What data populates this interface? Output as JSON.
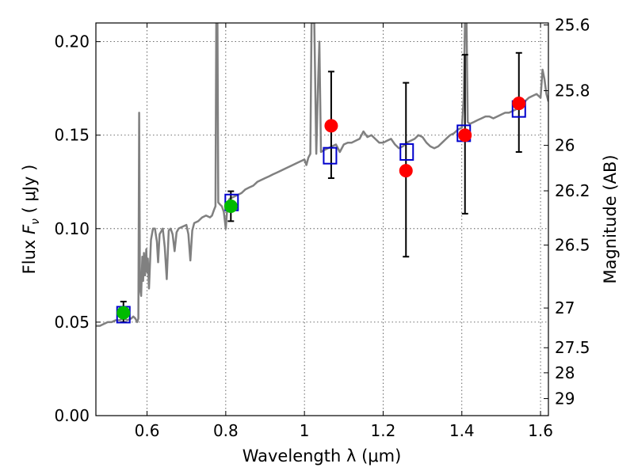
{
  "chart_data": {
    "type": "scatter",
    "xlabel": "Wavelength  λ (μm)",
    "ylabel": "Flux  Fν  ( μJy )",
    "ylabel_parts": {
      "prefix": "Flux  ",
      "symbol": "F",
      "subscript": "ν",
      "suffix": "  ( μJy )"
    },
    "y2label": "Magnitude (AB)",
    "xlim": [
      0.47,
      1.62
    ],
    "ylim": [
      0.0,
      0.21
    ],
    "xticks": [
      0.6,
      0.8,
      1.0,
      1.2,
      1.4,
      1.6
    ],
    "xtick_labels": [
      "0.6",
      "0.8",
      "1",
      "1.2",
      "1.4",
      "1.6"
    ],
    "yticks": [
      0.0,
      0.05,
      0.1,
      0.15,
      0.2
    ],
    "ytick_labels": [
      "0.00",
      "0.05",
      "0.10",
      "0.15",
      "0.20"
    ],
    "y2_ticks": [
      {
        "label": "25.6",
        "mag": 25.6
      },
      {
        "label": "25.8",
        "mag": 25.8
      },
      {
        "label": "26",
        "mag": 26.0
      },
      {
        "label": "26.2",
        "mag": 26.2
      },
      {
        "label": "26.5",
        "mag": 26.5
      },
      {
        "label": "27",
        "mag": 27.0
      },
      {
        "label": "27.5",
        "mag": 27.5
      },
      {
        "label": "28",
        "mag": 28.0
      },
      {
        "label": "29",
        "mag": 29.0
      }
    ],
    "grid": true,
    "series": [
      {
        "name": "Model spectrum",
        "kind": "line",
        "color": "#808080",
        "points": [
          [
            0.47,
            0.048
          ],
          [
            0.48,
            0.048
          ],
          [
            0.49,
            0.049
          ],
          [
            0.5,
            0.05
          ],
          [
            0.51,
            0.05
          ],
          [
            0.52,
            0.051
          ],
          [
            0.53,
            0.051
          ],
          [
            0.54,
            0.052
          ],
          [
            0.55,
            0.051
          ],
          [
            0.56,
            0.052
          ],
          [
            0.565,
            0.053
          ],
          [
            0.57,
            0.052
          ],
          [
            0.575,
            0.05
          ],
          [
            0.578,
            0.052
          ],
          [
            0.58,
            0.162
          ],
          [
            0.582,
            0.068
          ],
          [
            0.585,
            0.064
          ],
          [
            0.588,
            0.085
          ],
          [
            0.59,
            0.072
          ],
          [
            0.592,
            0.087
          ],
          [
            0.595,
            0.075
          ],
          [
            0.598,
            0.089
          ],
          [
            0.6,
            0.077
          ],
          [
            0.602,
            0.084
          ],
          [
            0.605,
            0.068
          ],
          [
            0.61,
            0.094
          ],
          [
            0.615,
            0.1
          ],
          [
            0.62,
            0.1
          ],
          [
            0.625,
            0.093
          ],
          [
            0.628,
            0.082
          ],
          [
            0.632,
            0.097
          ],
          [
            0.64,
            0.1
          ],
          [
            0.645,
            0.09
          ],
          [
            0.65,
            0.073
          ],
          [
            0.655,
            0.099
          ],
          [
            0.66,
            0.1
          ],
          [
            0.665,
            0.097
          ],
          [
            0.67,
            0.088
          ],
          [
            0.675,
            0.098
          ],
          [
            0.68,
            0.1
          ],
          [
            0.69,
            0.101
          ],
          [
            0.7,
            0.102
          ],
          [
            0.705,
            0.097
          ],
          [
            0.71,
            0.083
          ],
          [
            0.715,
            0.099
          ],
          [
            0.72,
            0.103
          ],
          [
            0.73,
            0.104
          ],
          [
            0.74,
            0.106
          ],
          [
            0.75,
            0.107
          ],
          [
            0.76,
            0.106
          ],
          [
            0.765,
            0.107
          ],
          [
            0.77,
            0.11
          ],
          [
            0.774,
            0.112
          ],
          [
            0.776,
            0.21
          ],
          [
            0.779,
            0.21
          ],
          [
            0.781,
            0.114
          ],
          [
            0.785,
            0.113
          ],
          [
            0.79,
            0.112
          ],
          [
            0.795,
            0.109
          ],
          [
            0.8,
            0.1
          ],
          [
            0.805,
            0.114
          ],
          [
            0.81,
            0.116
          ],
          [
            0.82,
            0.117
          ],
          [
            0.83,
            0.118
          ],
          [
            0.84,
            0.119
          ],
          [
            0.85,
            0.121
          ],
          [
            0.86,
            0.122
          ],
          [
            0.87,
            0.123
          ],
          [
            0.88,
            0.125
          ],
          [
            0.89,
            0.126
          ],
          [
            0.9,
            0.127
          ],
          [
            0.91,
            0.128
          ],
          [
            0.92,
            0.129
          ],
          [
            0.93,
            0.13
          ],
          [
            0.94,
            0.131
          ],
          [
            0.95,
            0.132
          ],
          [
            0.96,
            0.133
          ],
          [
            0.97,
            0.134
          ],
          [
            0.98,
            0.135
          ],
          [
            0.99,
            0.136
          ],
          [
            1.0,
            0.137
          ],
          [
            1.005,
            0.134
          ],
          [
            1.01,
            0.138
          ],
          [
            1.015,
            0.14
          ],
          [
            1.018,
            0.21
          ],
          [
            1.025,
            0.21
          ],
          [
            1.03,
            0.14
          ],
          [
            1.035,
            0.18
          ],
          [
            1.038,
            0.2
          ],
          [
            1.042,
            0.141
          ],
          [
            1.05,
            0.142
          ],
          [
            1.06,
            0.143
          ],
          [
            1.07,
            0.144
          ],
          [
            1.08,
            0.145
          ],
          [
            1.09,
            0.141
          ],
          [
            1.1,
            0.145
          ],
          [
            1.11,
            0.146
          ],
          [
            1.12,
            0.146
          ],
          [
            1.13,
            0.147
          ],
          [
            1.14,
            0.148
          ],
          [
            1.15,
            0.152
          ],
          [
            1.16,
            0.149
          ],
          [
            1.17,
            0.15
          ],
          [
            1.18,
            0.148
          ],
          [
            1.19,
            0.146
          ],
          [
            1.2,
            0.146
          ],
          [
            1.21,
            0.147
          ],
          [
            1.22,
            0.148
          ],
          [
            1.23,
            0.145
          ],
          [
            1.24,
            0.143
          ],
          [
            1.25,
            0.144
          ],
          [
            1.26,
            0.146
          ],
          [
            1.27,
            0.147
          ],
          [
            1.28,
            0.148
          ],
          [
            1.29,
            0.15
          ],
          [
            1.3,
            0.149
          ],
          [
            1.31,
            0.146
          ],
          [
            1.32,
            0.144
          ],
          [
            1.33,
            0.143
          ],
          [
            1.34,
            0.144
          ],
          [
            1.35,
            0.146
          ],
          [
            1.36,
            0.148
          ],
          [
            1.37,
            0.15
          ],
          [
            1.38,
            0.151
          ],
          [
            1.39,
            0.153
          ],
          [
            1.4,
            0.154
          ],
          [
            1.405,
            0.17
          ],
          [
            1.408,
            0.21
          ],
          [
            1.412,
            0.21
          ],
          [
            1.415,
            0.157
          ],
          [
            1.42,
            0.156
          ],
          [
            1.43,
            0.157
          ],
          [
            1.44,
            0.158
          ],
          [
            1.45,
            0.159
          ],
          [
            1.46,
            0.16
          ],
          [
            1.47,
            0.16
          ],
          [
            1.48,
            0.159
          ],
          [
            1.49,
            0.16
          ],
          [
            1.5,
            0.161
          ],
          [
            1.51,
            0.162
          ],
          [
            1.52,
            0.162
          ],
          [
            1.53,
            0.163
          ],
          [
            1.54,
            0.164
          ],
          [
            1.55,
            0.165
          ],
          [
            1.56,
            0.168
          ],
          [
            1.57,
            0.17
          ],
          [
            1.58,
            0.171
          ],
          [
            1.59,
            0.172
          ],
          [
            1.6,
            0.17
          ],
          [
            1.605,
            0.185
          ],
          [
            1.61,
            0.18
          ],
          [
            1.615,
            0.172
          ],
          [
            1.62,
            0.168
          ]
        ]
      },
      {
        "name": "Model photometry",
        "kind": "open-square",
        "color": "#0000cc",
        "points": [
          [
            0.54,
            0.054
          ],
          [
            0.815,
            0.114
          ],
          [
            1.065,
            0.139
          ],
          [
            1.26,
            0.141
          ],
          [
            1.405,
            0.151
          ],
          [
            1.545,
            0.164
          ]
        ]
      },
      {
        "name": "Observed photometry (green)",
        "kind": "circle",
        "color": "#00bb00",
        "points": [
          {
            "x": 0.54,
            "y": 0.055,
            "err_lo": 0.005,
            "err_hi": 0.006
          },
          {
            "x": 0.813,
            "y": 0.112,
            "err_lo": 0.008,
            "err_hi": 0.008
          }
        ]
      },
      {
        "name": "Observed photometry (red)",
        "kind": "circle",
        "color": "#ff0000",
        "points": [
          {
            "x": 1.068,
            "y": 0.155,
            "err_lo": 0.028,
            "err_hi": 0.029
          },
          {
            "x": 1.258,
            "y": 0.131,
            "err_lo": 0.046,
            "err_hi": 0.047
          },
          {
            "x": 1.408,
            "y": 0.15,
            "err_lo": 0.042,
            "err_hi": 0.043
          },
          {
            "x": 1.545,
            "y": 0.167,
            "err_lo": 0.026,
            "err_hi": 0.027
          }
        ]
      }
    ]
  }
}
